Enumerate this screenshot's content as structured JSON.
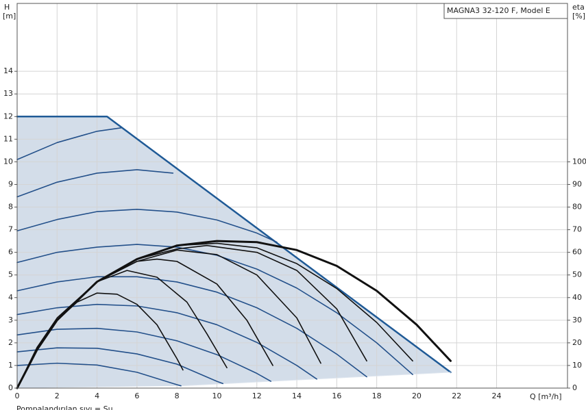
{
  "chart_data": {
    "type": "line",
    "title": "MAGNA3 32-120 F, Model E",
    "y_label": "H",
    "y_unit": "[m]",
    "y2_label": "eta",
    "y2_unit": "[%]",
    "x_label": "Q [m³/h]",
    "footnote": "Pompalandırılan sıvı = Su",
    "xlim": [
      0,
      27.55
    ],
    "ylim": [
      0,
      17
    ],
    "y2lim": [
      0,
      170
    ],
    "xticks": [
      0,
      2,
      4,
      6,
      8,
      10,
      12,
      14,
      16,
      18,
      20,
      22,
      24
    ],
    "yticks": [
      0,
      1,
      2,
      3,
      4,
      5,
      6,
      7,
      8,
      9,
      10,
      11,
      12,
      13,
      14
    ],
    "y2ticks": [
      0,
      10,
      20,
      30,
      40,
      50,
      60,
      70,
      80,
      90,
      100
    ],
    "grid": true,
    "area": {
      "color": "#d3dde9",
      "x": [
        0,
        4.5,
        21.7,
        8.2,
        0
      ],
      "values": [
        12,
        12,
        0.7,
        0.1,
        0
      ]
    },
    "series": [
      {
        "color": "#1f5a96",
        "width": 2.5,
        "x": [
          0,
          4.5,
          21.7
        ],
        "values": [
          12,
          12,
          0.7
        ]
      },
      {
        "color": "#dfe6ef",
        "width": 1,
        "x": [
          8.2,
          21.7
        ],
        "values": [
          0.1,
          0.7
        ]
      },
      {
        "color": "#23508a",
        "width": 1.6,
        "x": [
          0,
          2,
          4,
          5.2
        ],
        "values": [
          10.1,
          10.85,
          11.35,
          11.5
        ]
      },
      {
        "color": "#23508a",
        "width": 1.6,
        "x": [
          0,
          2,
          4,
          6,
          7.8
        ],
        "values": [
          8.45,
          9.1,
          9.5,
          9.65,
          9.5
        ]
      },
      {
        "color": "#23508a",
        "width": 1.6,
        "x": [
          0,
          2,
          4,
          6,
          8,
          10,
          12,
          13
        ],
        "values": [
          6.95,
          7.45,
          7.8,
          7.9,
          7.78,
          7.43,
          6.85,
          6.45
        ]
      },
      {
        "color": "#23508a",
        "width": 1.6,
        "x": [
          0,
          2,
          4,
          6,
          8,
          10,
          12,
          14,
          16,
          18,
          19.8
        ],
        "values": [
          5.55,
          6.0,
          6.23,
          6.35,
          6.23,
          5.87,
          5.26,
          4.42,
          3.33,
          2.0,
          0.6
        ]
      },
      {
        "color": "#23508a",
        "width": 1.6,
        "x": [
          0,
          2,
          4,
          6,
          8,
          10,
          12,
          14,
          16,
          17.5
        ],
        "values": [
          4.3,
          4.69,
          4.92,
          4.92,
          4.69,
          4.24,
          3.55,
          2.64,
          1.5,
          0.5
        ]
      },
      {
        "color": "#23508a",
        "width": 1.6,
        "x": [
          0,
          2,
          4,
          6,
          8,
          10,
          12,
          14,
          15
        ],
        "values": [
          3.25,
          3.55,
          3.7,
          3.63,
          3.33,
          2.8,
          2.02,
          1.0,
          0.4
        ]
      },
      {
        "color": "#23508a",
        "width": 1.6,
        "x": [
          0,
          2,
          4,
          6,
          8,
          10,
          12,
          12.7
        ],
        "values": [
          2.35,
          2.6,
          2.64,
          2.48,
          2.09,
          1.48,
          0.65,
          0.3
        ]
      },
      {
        "color": "#23508a",
        "width": 1.6,
        "x": [
          0,
          2,
          4,
          6,
          8,
          10,
          10.3
        ],
        "values": [
          1.6,
          1.78,
          1.76,
          1.51,
          1.06,
          0.3,
          0.2
        ]
      },
      {
        "color": "#23508a",
        "width": 1.6,
        "x": [
          0,
          2,
          4,
          6,
          8,
          8.2
        ],
        "values": [
          1.0,
          1.1,
          1.02,
          0.7,
          0.15,
          0.1
        ]
      },
      {
        "color": "#111111",
        "width": 1.6,
        "axis": "y2",
        "x": [
          0,
          1,
          2,
          3,
          4,
          5,
          6,
          7,
          8,
          8.3
        ],
        "values": [
          0,
          18,
          30,
          38,
          42,
          41.5,
          37,
          28,
          13,
          8
        ]
      },
      {
        "color": "#111111",
        "width": 1.6,
        "axis": "y2",
        "x": [
          0,
          1,
          2,
          4,
          5.5,
          7,
          8.5,
          9.5,
          10.5
        ],
        "values": [
          0,
          18,
          31,
          47,
          52,
          49,
          38,
          24,
          9
        ]
      },
      {
        "color": "#111111",
        "width": 1.6,
        "axis": "y2",
        "x": [
          0,
          1,
          2,
          4,
          6,
          7,
          8,
          10,
          11.5,
          12.8
        ],
        "values": [
          0,
          17,
          30,
          47,
          56,
          57,
          56,
          46,
          30,
          10
        ]
      },
      {
        "color": "#111111",
        "width": 1.6,
        "axis": "y2",
        "x": [
          0,
          1,
          2,
          4,
          6,
          8,
          10,
          12,
          14,
          15.2
        ],
        "values": [
          0,
          17,
          30,
          47,
          56,
          61,
          59,
          50,
          31,
          11
        ]
      },
      {
        "color": "#111111",
        "width": 1.6,
        "axis": "y2",
        "x": [
          0,
          1,
          2,
          4,
          6,
          8,
          9.5,
          12,
          14,
          16,
          17.5
        ],
        "values": [
          0,
          17,
          30,
          47,
          57,
          61.5,
          63,
          60,
          52,
          35,
          12
        ]
      },
      {
        "color": "#111111",
        "width": 1.6,
        "axis": "y2",
        "x": [
          0,
          1,
          2,
          4,
          6,
          8,
          10,
          12,
          14,
          16,
          18,
          19.8
        ],
        "values": [
          0,
          17,
          30,
          47,
          57,
          63,
          64,
          62,
          55,
          44,
          29,
          12
        ]
      },
      {
        "color": "#111111",
        "width": 3,
        "axis": "y2",
        "x": [
          0,
          1,
          2,
          4,
          6,
          8,
          10,
          12,
          14,
          16,
          18,
          20,
          21.7
        ],
        "values": [
          0,
          17,
          30,
          47,
          57,
          63,
          65,
          64.5,
          61,
          54,
          43,
          28,
          12
        ]
      }
    ]
  }
}
